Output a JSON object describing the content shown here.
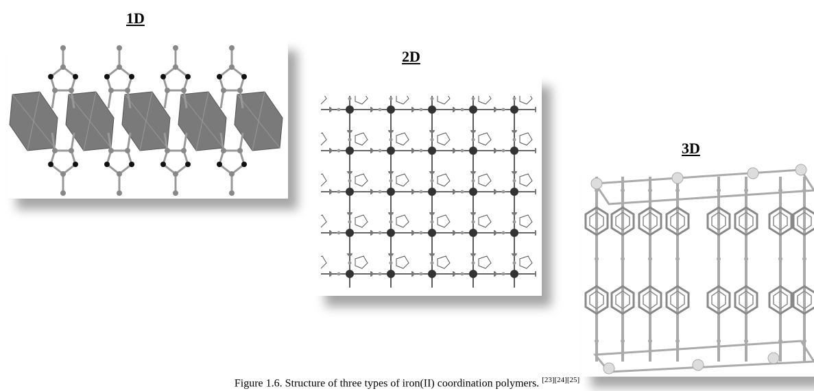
{
  "panels": [
    {
      "label": "1D"
    },
    {
      "label": "2D"
    },
    {
      "label": "3D"
    }
  ],
  "caption": {
    "text": "Figure 1.6. Structure of three types of iron(II) coordination polymers.",
    "refs": "[23][24][25]"
  }
}
